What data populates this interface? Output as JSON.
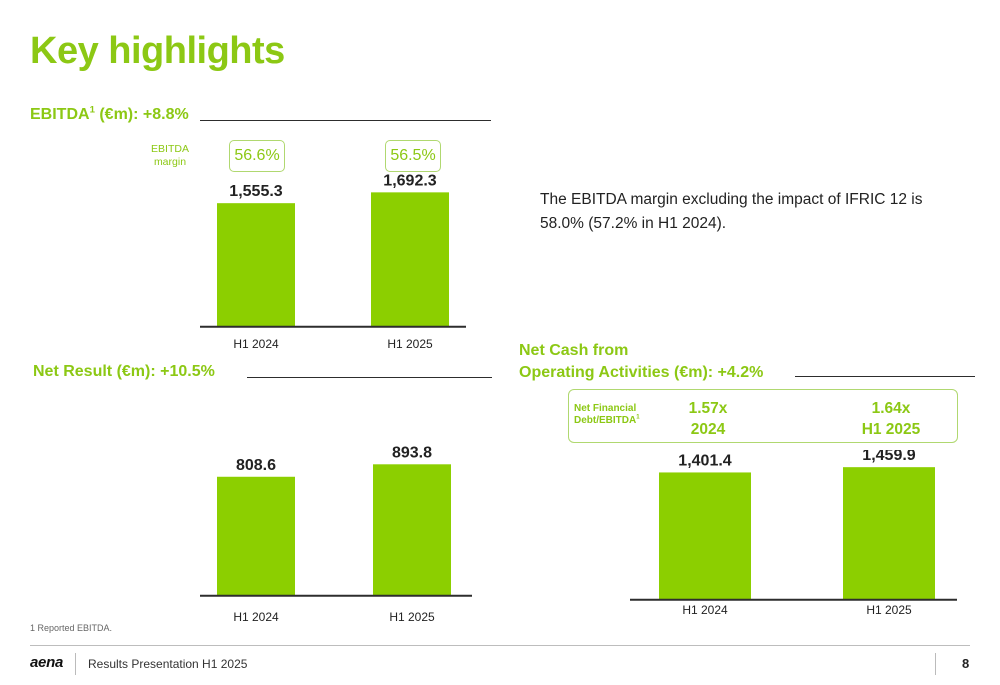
{
  "title": "Key highlights",
  "colors": {
    "accent": "#8cc814",
    "bar": "#8ccf00",
    "axis": "#2d2d2d",
    "text": "#222222"
  },
  "ebitda_section": {
    "label": "EBITDA",
    "sup": "1",
    "label_rest": " (€m): +8.8%",
    "margin_label_line1": "EBITDA",
    "margin_label_line2": "margin",
    "margins": [
      "56.6%",
      "56.5%"
    ]
  },
  "description": "The EBITDA margin excluding the impact of IFRIC 12 is 58.0% (57.2% in H1 2024).",
  "net_result_section": {
    "label": "Net Result (€m): +10.5%"
  },
  "net_cash_section": {
    "label_line1": "Net Cash from",
    "label_line2": "Operating Activities (€m): +4.2%",
    "ratio_label_line1": "Net Financial",
    "ratio_label_line2": "Debt/EBITDA",
    "ratio_label_sup": "1",
    "ratios": [
      {
        "value": "1.57x",
        "period": "2024"
      },
      {
        "value": "1.64x",
        "period": "H1 2025"
      }
    ]
  },
  "chart_data": [
    {
      "type": "bar",
      "categories": [
        "H1 2024",
        "H1 2025"
      ],
      "values": [
        1555.3,
        1692.3
      ],
      "value_labels": [
        "1,555.3",
        "1,692.3"
      ],
      "title": "EBITDA (€m): +8.8%",
      "ylim": [
        0,
        1950
      ]
    },
    {
      "type": "bar",
      "categories": [
        "H1 2024",
        "H1 2025"
      ],
      "values": [
        808.6,
        893.8
      ],
      "value_labels": [
        "808.6",
        "893.8"
      ],
      "title": "Net Result (€m): +10.5%",
      "ylim": [
        0,
        1060
      ]
    },
    {
      "type": "bar",
      "categories": [
        "H1 2024",
        "H1 2025"
      ],
      "values": [
        1401.4,
        1459.9
      ],
      "value_labels": [
        "1,401.4",
        "1,459.9"
      ],
      "title": "Net Cash from Operating Activities (€m): +4.2%",
      "ylim": [
        0,
        1650
      ]
    }
  ],
  "footnote": "1 Reported EBITDA.",
  "footer": {
    "logo": "aena",
    "text": "Results Presentation H1 2025",
    "page": "8"
  }
}
